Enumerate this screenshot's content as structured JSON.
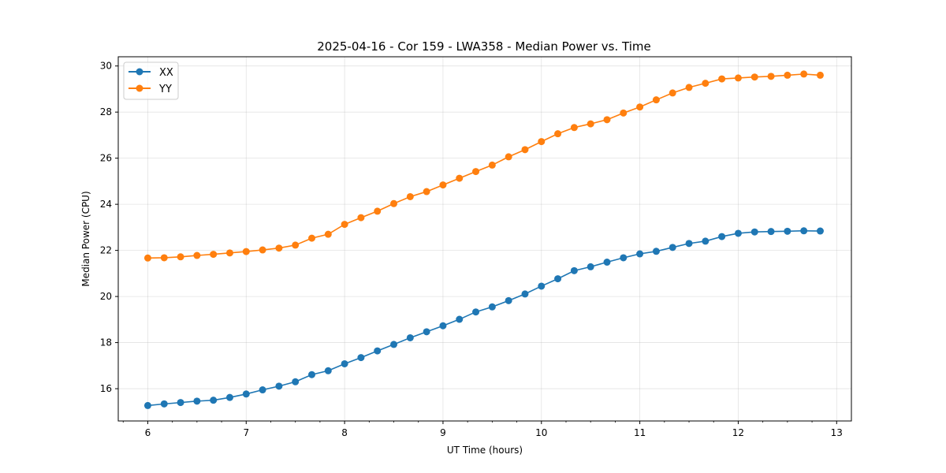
{
  "chart_data": {
    "type": "line",
    "title": "2025-04-16 - Cor 159 - LWA358 - Median Power vs. Time",
    "xlabel": "UT Time (hours)",
    "ylabel": "Median Power (CPU)",
    "xlim": [
      5.7,
      13.15
    ],
    "ylim": [
      14.6,
      30.4
    ],
    "xticks": [
      6,
      7,
      8,
      9,
      10,
      11,
      12,
      13
    ],
    "xtick_labels": [
      "6",
      "7",
      "8",
      "9",
      "10",
      "11",
      "12",
      "13"
    ],
    "yticks": [
      16,
      18,
      20,
      22,
      24,
      26,
      28,
      30
    ],
    "ytick_labels": [
      "16",
      "18",
      "20",
      "22",
      "24",
      "26",
      "28",
      "30"
    ],
    "grid": true,
    "legend_position": "top-left",
    "x": [
      6.0,
      6.1667,
      6.3333,
      6.5,
      6.6667,
      6.8333,
      7.0,
      7.1667,
      7.3333,
      7.5,
      7.6667,
      7.8333,
      8.0,
      8.1667,
      8.3333,
      8.5,
      8.6667,
      8.8333,
      9.0,
      9.1667,
      9.3333,
      9.5,
      9.6667,
      9.8333,
      10.0,
      10.1667,
      10.3333,
      10.5,
      10.6667,
      10.8333,
      11.0,
      11.1667,
      11.3333,
      11.5,
      11.6667,
      11.8333,
      12.0,
      12.1667,
      12.3333,
      12.5,
      12.6667,
      12.8333
    ],
    "series": [
      {
        "name": "XX",
        "color": "#1f77b4",
        "values": [
          15.27,
          15.34,
          15.4,
          15.46,
          15.5,
          15.62,
          15.77,
          15.95,
          16.11,
          16.3,
          16.61,
          16.78,
          17.08,
          17.35,
          17.64,
          17.92,
          18.21,
          18.47,
          18.73,
          19.01,
          19.33,
          19.55,
          19.82,
          20.11,
          20.45,
          20.77,
          21.12,
          21.29,
          21.49,
          21.68,
          21.85,
          21.96,
          22.13,
          22.3,
          22.4,
          22.6,
          22.74,
          22.8,
          22.82,
          22.83,
          22.85,
          22.84
        ]
      },
      {
        "name": "YY",
        "color": "#ff7f0e",
        "values": [
          21.67,
          21.68,
          21.72,
          21.78,
          21.83,
          21.89,
          21.95,
          22.02,
          22.1,
          22.23,
          22.53,
          22.7,
          23.13,
          23.42,
          23.7,
          24.03,
          24.33,
          24.55,
          24.84,
          25.13,
          25.42,
          25.7,
          26.06,
          26.37,
          26.72,
          27.06,
          27.33,
          27.49,
          27.67,
          27.96,
          28.22,
          28.53,
          28.83,
          29.07,
          29.25,
          29.44,
          29.48,
          29.52,
          29.55,
          29.6,
          29.65,
          29.6
        ]
      }
    ]
  }
}
